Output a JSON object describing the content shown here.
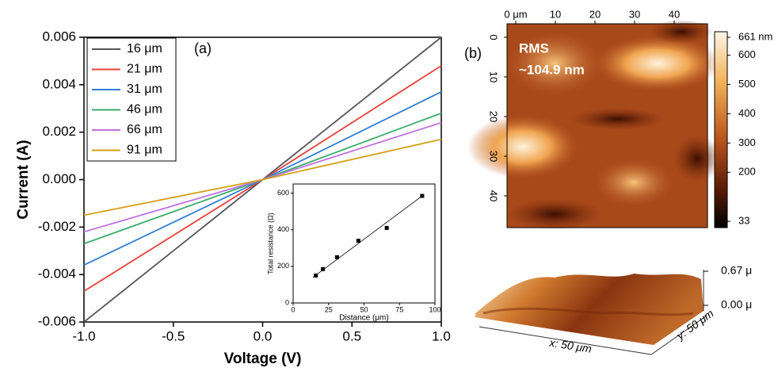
{
  "chart_data": [
    {
      "type": "line",
      "x": [
        -1,
        0,
        1
      ],
      "xlim": [
        -1,
        1
      ],
      "ylim": [
        -0.006,
        0.006
      ],
      "xticks": [
        {
          "value": -1,
          "label": "-1.0"
        },
        -0.5,
        {
          "value": 0,
          "label": "0.0"
        },
        0.5,
        {
          "value": 1,
          "label": "1.0"
        }
      ],
      "yticks": [
        -0.006,
        -0.004,
        -0.002,
        {
          "value": 0,
          "label": "0.000"
        },
        0.002,
        0.004,
        0.006
      ],
      "xlabel": "Voltage (V)",
      "ylabel": "Current (A)",
      "annotation": "(a)",
      "legend": "upper left",
      "series": [
        {
          "name": "16 μm",
          "color": "#555555",
          "values": [
            -0.006,
            0,
            0.006
          ]
        },
        {
          "name": "21 μm",
          "color": "#e8403a",
          "values": [
            -0.0047,
            0,
            0.0048
          ]
        },
        {
          "name": "31 μm",
          "color": "#2f7fd6",
          "values": [
            -0.0036,
            0,
            0.0037
          ]
        },
        {
          "name": "46 μm",
          "color": "#3aae6a",
          "values": [
            -0.0027,
            0,
            0.0028
          ]
        },
        {
          "name": "66 μm",
          "color": "#c070e0",
          "values": [
            -0.0022,
            0,
            0.0024
          ]
        },
        {
          "name": "91 μm",
          "color": "#d4a017",
          "values": [
            -0.0015,
            0,
            0.0017
          ]
        }
      ]
    },
    {
      "type": "scatter",
      "x": [
        16,
        21,
        31,
        46,
        66,
        91
      ],
      "values": [
        150,
        185,
        250,
        340,
        410,
        585
      ],
      "color": "#000000",
      "xlim": [
        0,
        100
      ],
      "ylim": [
        0,
        650
      ],
      "xticks": [
        0,
        25,
        50,
        75,
        100
      ],
      "yticks": [
        0,
        200,
        400,
        600
      ],
      "xlabel": "Distance (μm)",
      "ylabel": "Total resistance (Ω)",
      "fit_line": {
        "x": [
          14,
          91
        ],
        "values": [
          140,
          585
        ]
      }
    },
    {
      "type": "heatmap",
      "annotation": "(b)",
      "rms_label": "RMS",
      "rms_value": "~104.9 nm",
      "xlim": [
        0,
        50
      ],
      "ylim": [
        0,
        50
      ],
      "xticks": [
        {
          "value": 0,
          "label": "0 μm"
        },
        10,
        20,
        30,
        40
      ],
      "yticks": [
        0,
        10,
        20,
        30,
        40
      ],
      "colorbar_lim": [
        33,
        661
      ],
      "colorbar_ticks": [
        {
          "value": 661,
          "label": "661 nm"
        },
        600,
        500,
        400,
        300,
        200,
        33
      ],
      "surface_ticks": [
        {
          "value": 0.67,
          "label": "0.67 μ"
        },
        {
          "value": 0,
          "label": "0.00 μ"
        }
      ],
      "surface_xlabel": "x: 50 μm",
      "surface_ylabel": "y: 50 μm"
    }
  ]
}
